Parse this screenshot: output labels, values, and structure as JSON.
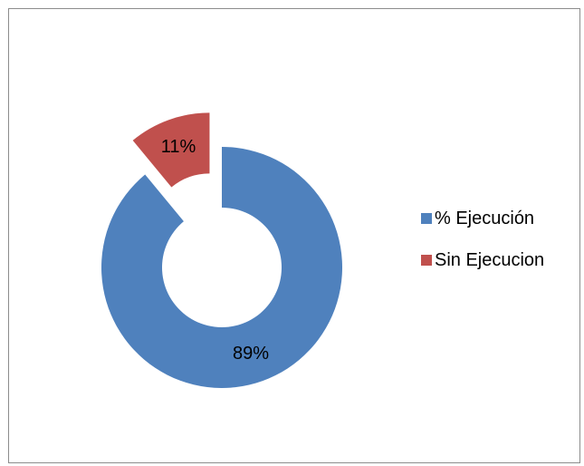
{
  "chart_data": {
    "type": "pie",
    "variant": "doughnut",
    "exploded_slice": "Sin Ejecucion",
    "categories": [
      "% Ejecución",
      "Sin Ejecucion"
    ],
    "values": [
      89,
      11
    ],
    "data_labels": [
      "89%",
      "11%"
    ],
    "colors": [
      "#4f81bd",
      "#c0504d"
    ],
    "legend_position": "right"
  },
  "legend": {
    "items": [
      {
        "label": "% Ejecución",
        "color": "#4f81bd"
      },
      {
        "label": "Sin Ejecucion",
        "color": "#c0504d"
      }
    ]
  }
}
